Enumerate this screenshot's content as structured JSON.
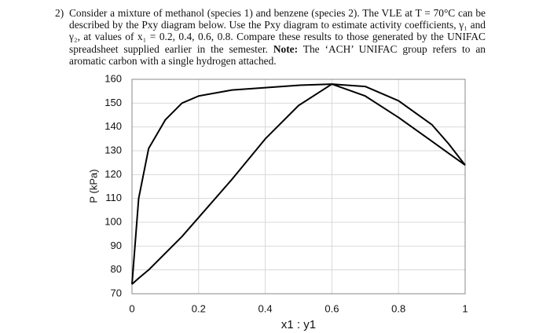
{
  "problem": {
    "number": "2)",
    "text": "Consider a mixture of methanol (species 1) and benzene (species 2). The VLE at T = 70°C can be described by the Pxy diagram below. Use the Pxy diagram to estimate activity coefficients, γ₁ and γ₂, at values of x₁ = 0.2, 0.4, 0.6, 0.8. Compare these results to those generated by the UNIFAC spreadsheet supplied earlier in the semester.",
    "note_label": "Note:",
    "note_text": "The ‘ACH’ UNIFAC group refers to an aromatic carbon with a single hydrogen attached."
  },
  "chart_data": {
    "type": "line",
    "x_label": "x1 : y1",
    "y_label": "P (kPa)",
    "x": [
      0,
      0.02,
      0.05,
      0.1,
      0.15,
      0.2,
      0.3,
      0.4,
      0.5,
      0.6,
      0.7,
      0.8,
      0.9,
      0.95,
      1
    ],
    "series": [
      {
        "color": "#000000",
        "values": [
          74,
          110,
          131,
          143,
          150,
          153,
          155.5,
          156.5,
          157.5,
          158,
          157,
          151,
          141,
          133,
          124
        ]
      },
      {
        "color": "#000000",
        "values": [
          74,
          76.5,
          80,
          87,
          94,
          102,
          118,
          135,
          149,
          158,
          153,
          144,
          134,
          129,
          124
        ]
      }
    ],
    "xlim": [
      0,
      1
    ],
    "ylim": [
      70,
      160
    ],
    "xticks": [
      0,
      0.2,
      0.4,
      0.6,
      0.8,
      1
    ],
    "yticks": [
      70,
      80,
      90,
      100,
      110,
      120,
      130,
      140,
      150,
      160
    ],
    "grid": true
  }
}
